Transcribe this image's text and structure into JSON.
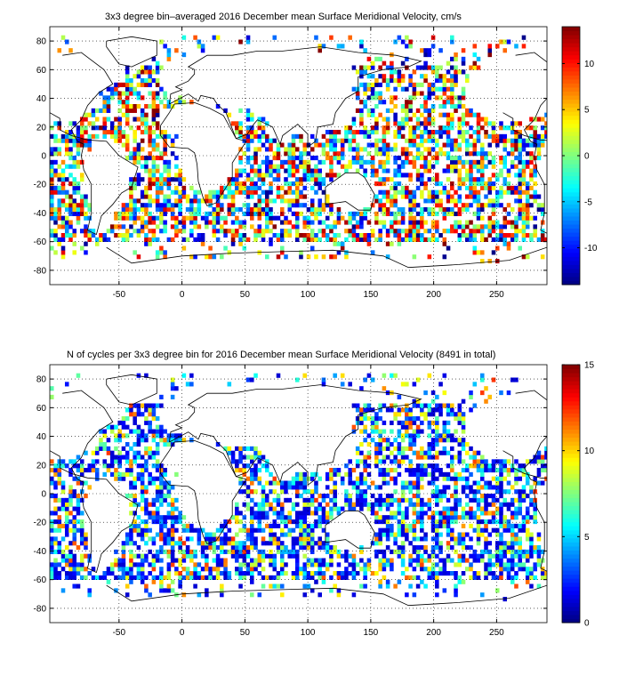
{
  "chart_data": [
    {
      "type": "heatmap",
      "title": "3x3 degree bin–averaged 2016 December mean Surface Meridional Velocity, cm/s",
      "xlim": [
        -105,
        290
      ],
      "ylim": [
        -90,
        90
      ],
      "xticks": [
        -50,
        0,
        50,
        100,
        150,
        200,
        250
      ],
      "yticks": [
        -80,
        -60,
        -40,
        -20,
        0,
        20,
        40,
        60,
        80
      ],
      "grid": true,
      "colorbar": {
        "min": -14,
        "max": 14,
        "ticks": [
          10,
          5,
          0,
          -5,
          -10
        ],
        "tick_labels": [
          "10",
          "5",
          "0",
          "-5",
          "-10"
        ],
        "colormap": "jet"
      },
      "bin_size_deg": 3
    },
    {
      "type": "heatmap",
      "title": "N of cycles per 3x3 degree bin for 2016 December mean Surface Meridional Velocity (8491 in total)",
      "xlim": [
        -105,
        290
      ],
      "ylim": [
        -90,
        90
      ],
      "xticks": [
        -50,
        0,
        50,
        100,
        150,
        200,
        250
      ],
      "yticks": [
        -80,
        -60,
        -40,
        -20,
        0,
        20,
        40,
        60,
        80
      ],
      "grid": true,
      "colorbar": {
        "min": 0,
        "max": 15,
        "ticks": [
          15,
          10,
          5,
          0
        ],
        "tick_labels": [
          "15",
          "10",
          "5",
          "0"
        ],
        "colormap": "jet"
      },
      "bin_size_deg": 3
    }
  ],
  "panels": {
    "top": {
      "title": "3x3 degree bin–averaged 2016 December mean Surface Meridional Velocity, cm/s"
    },
    "bottom": {
      "title": "N of cycles per 3x3 degree bin for 2016 December mean Surface Meridional Velocity (8491 in total)"
    }
  }
}
